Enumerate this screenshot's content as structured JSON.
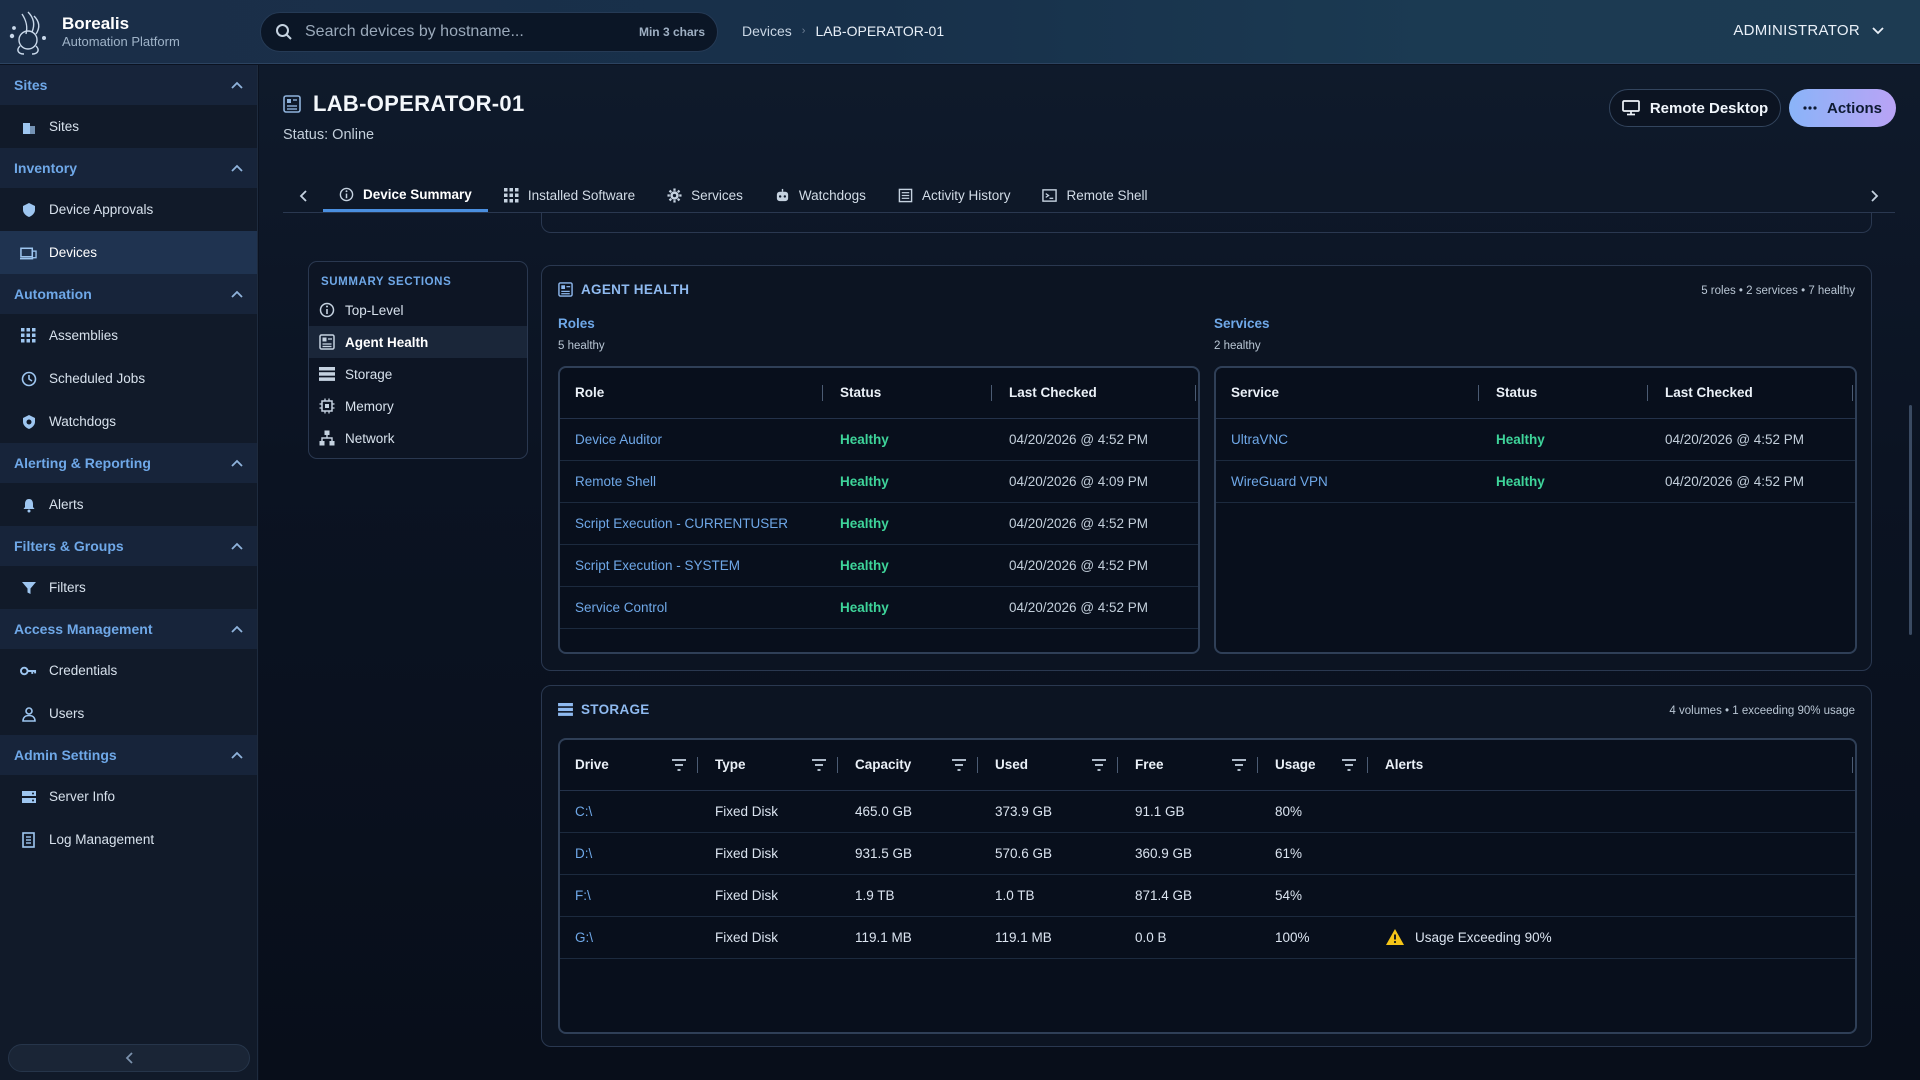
{
  "app": {
    "name": "Borealis",
    "subtitle": "Automation Platform"
  },
  "search": {
    "placeholder": "Search devices by hostname...",
    "hint": "Min 3 chars"
  },
  "breadcrumb": {
    "parent": "Devices",
    "current": "LAB-OPERATOR-01"
  },
  "user": {
    "label": "ADMINISTRATOR"
  },
  "sidebar": {
    "sections": [
      {
        "title": "Sites",
        "items": [
          {
            "label": "Sites",
            "icon": "building-icon"
          }
        ]
      },
      {
        "title": "Inventory",
        "items": [
          {
            "label": "Device Approvals",
            "icon": "shield-check-icon"
          },
          {
            "label": "Devices",
            "icon": "devices-icon"
          }
        ]
      },
      {
        "title": "Automation",
        "items": [
          {
            "label": "Assemblies",
            "icon": "grid-icon"
          },
          {
            "label": "Scheduled Jobs",
            "icon": "clock-icon"
          },
          {
            "label": "Watchdogs",
            "icon": "watchdog-icon"
          }
        ]
      },
      {
        "title": "Alerting & Reporting",
        "items": [
          {
            "label": "Alerts",
            "icon": "bell-icon"
          }
        ]
      },
      {
        "title": "Filters & Groups",
        "items": [
          {
            "label": "Filters",
            "icon": "filter-icon"
          }
        ]
      },
      {
        "title": "Access Management",
        "items": [
          {
            "label": "Credentials",
            "icon": "key-icon"
          },
          {
            "label": "Users",
            "icon": "user-icon"
          }
        ]
      },
      {
        "title": "Admin Settings",
        "items": [
          {
            "label": "Server Info",
            "icon": "server-icon"
          },
          {
            "label": "Log Management",
            "icon": "log-icon"
          }
        ]
      }
    ]
  },
  "device": {
    "title": "LAB-OPERATOR-01",
    "status": "Status: Online"
  },
  "buttons": {
    "remote_desktop": "Remote Desktop",
    "actions": "Actions"
  },
  "tabs": [
    {
      "label": "Device Summary",
      "icon": "info-icon"
    },
    {
      "label": "Installed Software",
      "icon": "grid-icon"
    },
    {
      "label": "Services",
      "icon": "gear-icon"
    },
    {
      "label": "Watchdogs",
      "icon": "robot-icon"
    },
    {
      "label": "Activity History",
      "icon": "list-icon"
    },
    {
      "label": "Remote Shell",
      "icon": "terminal-icon"
    }
  ],
  "summary_nav": {
    "title": "SUMMARY SECTIONS",
    "items": [
      {
        "label": "Top-Level",
        "icon": "info-icon"
      },
      {
        "label": "Agent Health",
        "icon": "health-icon"
      },
      {
        "label": "Storage",
        "icon": "storage-icon"
      },
      {
        "label": "Memory",
        "icon": "memory-icon"
      },
      {
        "label": "Network",
        "icon": "network-icon"
      }
    ]
  },
  "agent_health": {
    "title": "AGENT HEALTH",
    "meta": "5 roles • 2 services • 7 healthy",
    "roles": {
      "title": "Roles",
      "count": "5 healthy",
      "columns": [
        "Role",
        "Status",
        "Last Checked"
      ],
      "rows": [
        [
          "Device Auditor",
          "Healthy",
          "04/20/2026 @ 4:52 PM"
        ],
        [
          "Remote Shell",
          "Healthy",
          "04/20/2026 @ 4:09 PM"
        ],
        [
          "Script Execution - CURRENTUSER",
          "Healthy",
          "04/20/2026 @ 4:52 PM"
        ],
        [
          "Script Execution - SYSTEM",
          "Healthy",
          "04/20/2026 @ 4:52 PM"
        ],
        [
          "Service Control",
          "Healthy",
          "04/20/2026 @ 4:52 PM"
        ]
      ]
    },
    "services": {
      "title": "Services",
      "count": "2 healthy",
      "columns": [
        "Service",
        "Status",
        "Last Checked"
      ],
      "rows": [
        [
          "UltraVNC",
          "Healthy",
          "04/20/2026 @ 4:52 PM"
        ],
        [
          "WireGuard VPN",
          "Healthy",
          "04/20/2026 @ 4:52 PM"
        ]
      ]
    }
  },
  "storage": {
    "title": "STORAGE",
    "meta": "4 volumes • 1 exceeding 90% usage",
    "columns": [
      "Drive",
      "Type",
      "Capacity",
      "Used",
      "Free",
      "Usage",
      "Alerts"
    ],
    "rows": [
      [
        "C:\\",
        "Fixed Disk",
        "465.0 GB",
        "373.9 GB",
        "91.1 GB",
        "80%",
        ""
      ],
      [
        "D:\\",
        "Fixed Disk",
        "931.5 GB",
        "570.6 GB",
        "360.9 GB",
        "61%",
        ""
      ],
      [
        "F:\\",
        "Fixed Disk",
        "1.9 TB",
        "1.0 TB",
        "871.4 GB",
        "54%",
        ""
      ],
      [
        "G:\\",
        "Fixed Disk",
        "119.1 MB",
        "119.1 MB",
        "0.0 B",
        "100%",
        "Usage Exceeding 90%"
      ]
    ]
  },
  "colors": {
    "accent": "#6fa8e8",
    "healthy": "#3ed49a",
    "warning": "#f5c518"
  }
}
